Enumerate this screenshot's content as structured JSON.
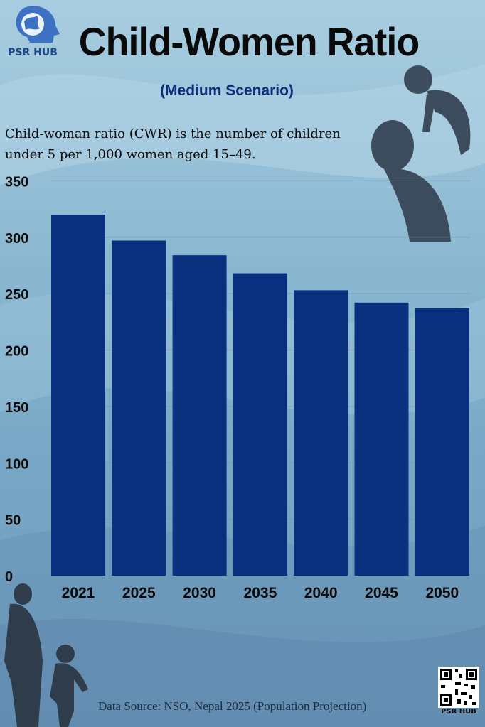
{
  "brand": {
    "name": "PSR HUB"
  },
  "header": {
    "title": "Child-Women Ratio",
    "subtitle": "(Medium Scenario)",
    "description_line1": "Child-woman ratio (CWR) is the number of children",
    "description_line2": "under 5 per 1,000 women aged 15–49."
  },
  "chart_data": {
    "type": "bar",
    "categories": [
      "2021",
      "2025",
      "2030",
      "2035",
      "2040",
      "2045",
      "2050"
    ],
    "values": [
      320,
      297,
      284,
      268,
      253,
      242,
      237
    ],
    "ylim": [
      0,
      350
    ],
    "yticks": [
      "0",
      "50",
      "100",
      "150",
      "200",
      "250",
      "300",
      "350"
    ],
    "bar_color": "#08307e",
    "grid": true,
    "xlabel": "",
    "ylabel": ""
  },
  "footer": {
    "source": "Data Source: NSO, Nepal 2025 (Population Projection)",
    "qr_label": "PSR HUB"
  },
  "colors": {
    "title": "#0a0a0a",
    "subtitle": "#0b2f7a",
    "background": "#8fbbd3"
  }
}
